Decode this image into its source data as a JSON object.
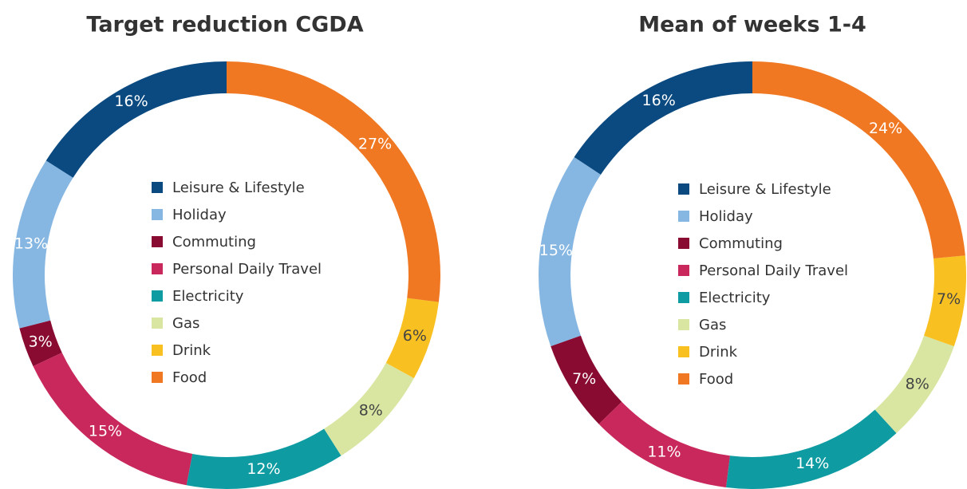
{
  "chart_data": [
    {
      "type": "pie",
      "title": "Target reduction CGDA",
      "categories": [
        "Leisure & Lifestyle",
        "Holiday",
        "Commuting",
        "Personal Daily Travel",
        "Electricity",
        "Gas",
        "Drink",
        "Food"
      ],
      "values": [
        16,
        13,
        3,
        15,
        12,
        8,
        6,
        27
      ],
      "value_labels": [
        "16%",
        "13%",
        "3%",
        "15%",
        "12%",
        "8%",
        "6%",
        "27%"
      ],
      "colors": [
        "#0b4a80",
        "#86b6e2",
        "#8a0b32",
        "#c8285c",
        "#0e9ca2",
        "#d9e6a2",
        "#f9c022",
        "#f07822"
      ],
      "donut": true
    },
    {
      "type": "pie",
      "title": "Mean of weeks 1-4",
      "categories": [
        "Leisure & Lifestyle",
        "Holiday",
        "Commuting",
        "Personal Daily Travel",
        "Electricity",
        "Gas",
        "Drink",
        "Food"
      ],
      "values": [
        16,
        15,
        7,
        11,
        14,
        8,
        7,
        24
      ],
      "value_labels": [
        "16%",
        "15%",
        "7%",
        "11%",
        "14%",
        "8%",
        "7%",
        "24%"
      ],
      "colors": [
        "#0b4a80",
        "#86b6e2",
        "#8a0b32",
        "#c8285c",
        "#0e9ca2",
        "#d9e6a2",
        "#f9c022",
        "#f07822"
      ],
      "donut": true
    }
  ]
}
